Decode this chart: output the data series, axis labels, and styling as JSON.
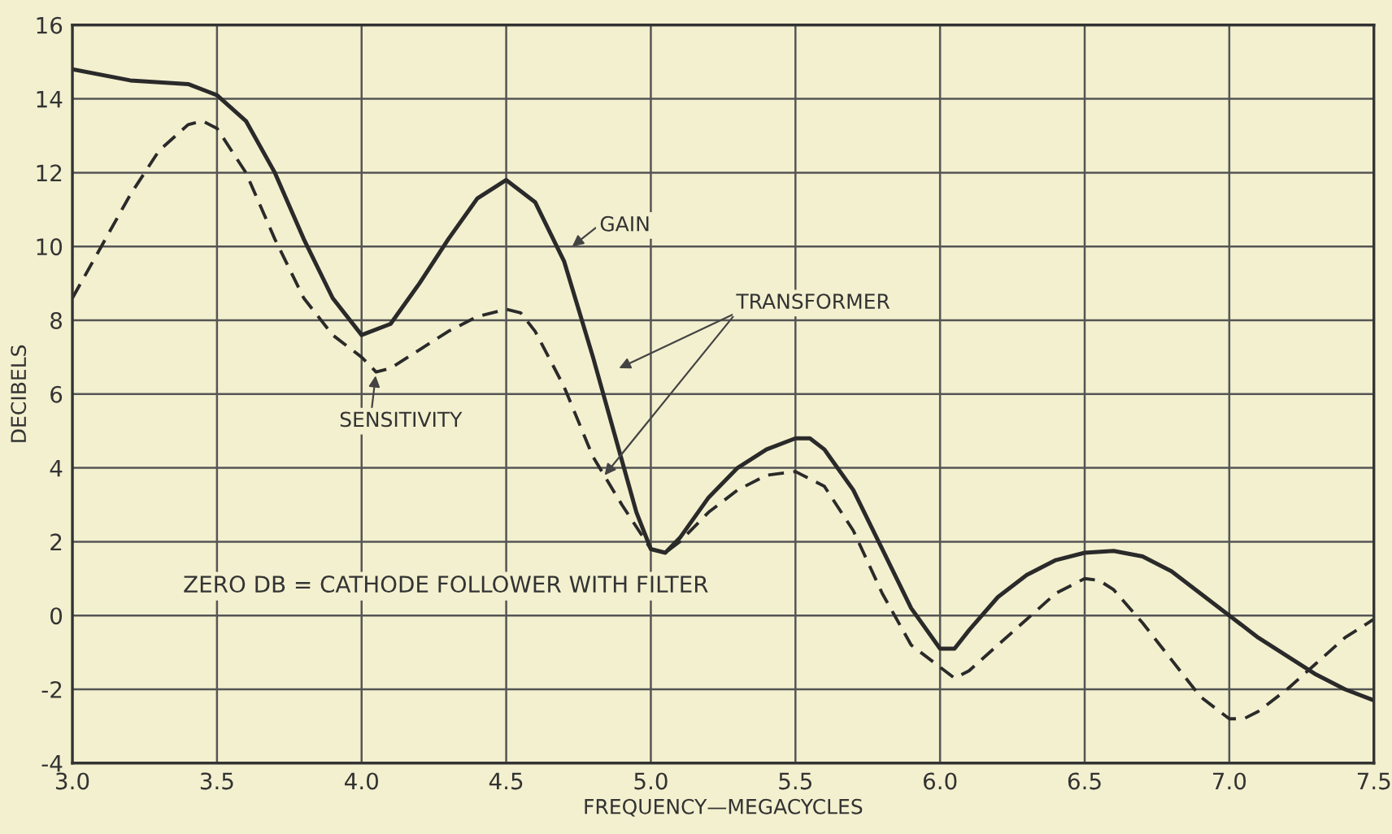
{
  "chart_data": {
    "type": "line",
    "xlabel": "FREQUENCY—MEGACYCLES",
    "ylabel": "DECIBELS",
    "xlim": [
      3.0,
      7.5
    ],
    "ylim": [
      -4,
      16
    ],
    "xticks": [
      {
        "value": 3.0,
        "label": "3.0"
      },
      {
        "value": 3.5,
        "label": "3.5"
      },
      {
        "value": 4.0,
        "label": "4.0"
      },
      {
        "value": 4.5,
        "label": "4.5"
      },
      {
        "value": 5.0,
        "label": "5.0"
      },
      {
        "value": 5.5,
        "label": "5.5"
      },
      {
        "value": 6.0,
        "label": "6.0"
      },
      {
        "value": 6.5,
        "label": "6.5"
      },
      {
        "value": 7.0,
        "label": "7.0"
      },
      {
        "value": 7.5,
        "label": "7.5"
      }
    ],
    "yticks": [
      -4,
      -2,
      0,
      2,
      4,
      6,
      8,
      10,
      12,
      14,
      16
    ],
    "grid": true,
    "series": [
      {
        "color": "#2a2a2a",
        "line_style": "solid",
        "x": [
          3.0,
          3.2,
          3.4,
          3.5,
          3.6,
          3.7,
          3.8,
          3.9,
          4.0,
          4.1,
          4.2,
          4.3,
          4.4,
          4.5,
          4.6,
          4.7,
          4.8,
          4.9,
          4.95,
          5.0,
          5.05,
          5.1,
          5.2,
          5.3,
          5.4,
          5.5,
          5.55,
          5.6,
          5.7,
          5.8,
          5.9,
          6.0,
          6.05,
          6.1,
          6.2,
          6.3,
          6.4,
          6.5,
          6.6,
          6.7,
          6.8,
          6.9,
          7.0,
          7.1,
          7.2,
          7.3,
          7.4,
          7.5
        ],
        "values": [
          14.8,
          14.5,
          14.4,
          14.1,
          13.4,
          12.0,
          10.2,
          8.6,
          7.6,
          7.9,
          9.0,
          10.2,
          11.3,
          11.8,
          11.2,
          9.6,
          7.0,
          4.2,
          2.8,
          1.8,
          1.7,
          2.1,
          3.2,
          4.0,
          4.5,
          4.8,
          4.8,
          4.5,
          3.4,
          1.8,
          0.2,
          -0.9,
          -0.9,
          -0.4,
          0.5,
          1.1,
          1.5,
          1.7,
          1.75,
          1.6,
          1.2,
          0.6,
          0.0,
          -0.6,
          -1.1,
          -1.6,
          -2.0,
          -2.3
        ]
      },
      {
        "color": "#2a2a2a",
        "line_style": "dashed",
        "x": [
          3.0,
          3.1,
          3.2,
          3.3,
          3.4,
          3.45,
          3.5,
          3.6,
          3.7,
          3.8,
          3.9,
          4.0,
          4.05,
          4.1,
          4.2,
          4.3,
          4.4,
          4.5,
          4.55,
          4.6,
          4.7,
          4.8,
          4.9,
          5.0,
          5.05,
          5.1,
          5.2,
          5.3,
          5.4,
          5.5,
          5.6,
          5.7,
          5.8,
          5.9,
          6.0,
          6.05,
          6.1,
          6.2,
          6.3,
          6.4,
          6.5,
          6.55,
          6.6,
          6.7,
          6.8,
          6.9,
          7.0,
          7.05,
          7.1,
          7.2,
          7.3,
          7.4,
          7.5
        ],
        "values": [
          8.6,
          10.0,
          11.4,
          12.6,
          13.3,
          13.4,
          13.2,
          12.0,
          10.2,
          8.6,
          7.6,
          7.0,
          6.6,
          6.7,
          7.2,
          7.7,
          8.1,
          8.3,
          8.2,
          7.7,
          6.2,
          4.3,
          3.0,
          1.8,
          1.7,
          2.0,
          2.8,
          3.4,
          3.8,
          3.9,
          3.5,
          2.3,
          0.6,
          -0.8,
          -1.4,
          -1.7,
          -1.5,
          -0.8,
          -0.1,
          0.6,
          1.0,
          0.95,
          0.7,
          -0.2,
          -1.2,
          -2.2,
          -2.8,
          -2.8,
          -2.6,
          -2.0,
          -1.3,
          -0.6,
          -0.1
        ]
      }
    ],
    "annotations": [
      "GAIN",
      {
        "text": "TRANSFORMER",
        "x": 4.84,
        "y": 3.8
      },
      "SENSITIVITY",
      "ZERO DB = CATHODE FOLLOWER WITH FILTER"
    ]
  }
}
